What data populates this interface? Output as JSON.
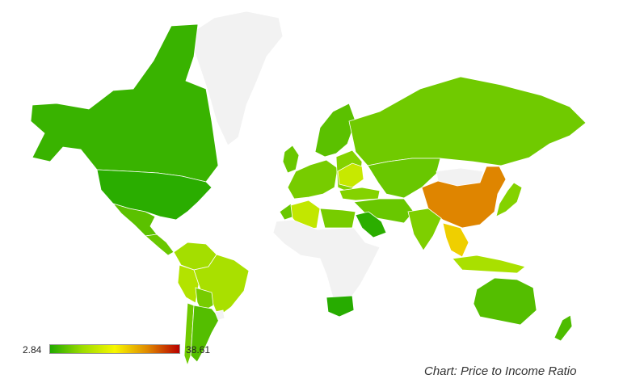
{
  "caption": "Chart: Price to Income Ratio",
  "legend": {
    "min_label": "2.84",
    "max_label": "38.61",
    "min": 2.84,
    "max": 38.61,
    "colors": [
      "#22aa00",
      "#9ddc00",
      "#f7f700",
      "#e08a00",
      "#b80000"
    ]
  },
  "no_data_color": "#f2f2f2",
  "ocean_color": "#ffffff",
  "regions": [
    {
      "id": "greenland",
      "value": null
    },
    {
      "id": "canada",
      "value": 4.5
    },
    {
      "id": "usa",
      "value": 3.4
    },
    {
      "id": "mexico",
      "value": 7.0
    },
    {
      "id": "central-america",
      "value": 8.0
    },
    {
      "id": "colombia-venezuela",
      "value": 12.5
    },
    {
      "id": "ecuador-peru",
      "value": 14.0
    },
    {
      "id": "brazil",
      "value": 13.0
    },
    {
      "id": "bolivia",
      "value": 9.0
    },
    {
      "id": "chile",
      "value": 8.5
    },
    {
      "id": "argentina",
      "value": 6.5
    },
    {
      "id": "uruguay",
      "value": null
    },
    {
      "id": "uk-ireland",
      "value": 8.0
    },
    {
      "id": "western-europe",
      "value": 9.0
    },
    {
      "id": "scandinavia",
      "value": 7.0
    },
    {
      "id": "eastern-europe",
      "value": 10.0
    },
    {
      "id": "ukraine",
      "value": 16.0
    },
    {
      "id": "turkey",
      "value": 10.0
    },
    {
      "id": "russia",
      "value": 8.5
    },
    {
      "id": "kazakhstan-central-asia",
      "value": 8.0
    },
    {
      "id": "mongolia",
      "value": null
    },
    {
      "id": "china",
      "value": 30.0
    },
    {
      "id": "japan-korea",
      "value": 10.0
    },
    {
      "id": "india",
      "value": 9.5
    },
    {
      "id": "iran-middle-east",
      "value": 8.0
    },
    {
      "id": "saudi-arabia",
      "value": 3.5
    },
    {
      "id": "algeria",
      "value": 15.5
    },
    {
      "id": "morocco",
      "value": 8.0
    },
    {
      "id": "egypt-libya",
      "value": 9.0
    },
    {
      "id": "africa-nodata",
      "value": null
    },
    {
      "id": "south-africa",
      "value": 3.2
    },
    {
      "id": "southeast-asia",
      "value": 24.0
    },
    {
      "id": "indonesia-philippines",
      "value": 13.0
    },
    {
      "id": "australia",
      "value": 6.5
    },
    {
      "id": "new-zealand",
      "value": 6.0
    }
  ]
}
